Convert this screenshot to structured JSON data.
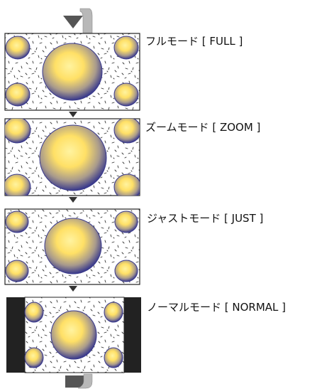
{
  "modes": [
    {
      "label": "フルモード [ FULL ]"
    },
    {
      "label": "ズームモード [ ZOOM ]"
    },
    {
      "label": "ジャストモード [ JUST ]"
    },
    {
      "label": "ノーマルモード [ NORMAL ]"
    }
  ],
  "colors": {
    "frame": "#222222",
    "circle_center": "#ffe066",
    "circle_edge": "#3a3a8c",
    "side_bar": "#222222",
    "arrow_grey": "#b8b8b8",
    "arrow_dark": "#555555"
  }
}
